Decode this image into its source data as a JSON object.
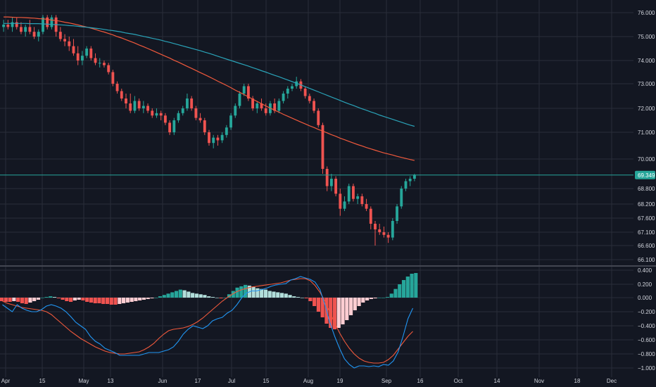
{
  "colors": {
    "background": "#131722",
    "grid": "#2a2e39",
    "axis_text": "#d1d4dc",
    "up": "#26a69a",
    "down": "#ef5350",
    "ma_fast": "#f0593c",
    "ma_slow": "#2aa3b8",
    "macd_line": "#2196f3",
    "signal_line": "#f0593c",
    "hist_up_strong": "#26a69a",
    "hist_up_weak": "#b2dfdb",
    "hist_down_strong": "#ef5350",
    "hist_down_weak": "#ffcdd2",
    "last_price_bg": "#26a69a"
  },
  "chart_data": [
    {
      "type": "candlestick",
      "panel": "price",
      "y_ticks": [
        "76.000",
        "75.000",
        "74.000",
        "73.000",
        "72.000",
        "71.000",
        "70.000",
        "68.800",
        "68.200",
        "67.600",
        "67.100",
        "66.600",
        "66.100"
      ],
      "y_tick_values": [
        76.0,
        75.0,
        74.0,
        73.0,
        72.0,
        71.0,
        70.0,
        68.8,
        68.2,
        67.6,
        67.1,
        66.6,
        66.1
      ],
      "last_price": "69.349",
      "last_price_value": 69.349,
      "x_ticks": [
        "Apr",
        "15",
        "May",
        "13",
        "Jun",
        "17",
        "Jul",
        "15",
        "Aug",
        "19",
        "Sep",
        "16",
        "Oct",
        "14",
        "Nov",
        "18",
        "Dec"
      ],
      "candles_ohlc": [
        [
          75.4,
          75.7,
          75.2,
          75.5
        ],
        [
          75.5,
          75.7,
          75.3,
          75.4
        ],
        [
          75.4,
          75.8,
          75.2,
          75.6
        ],
        [
          75.6,
          75.8,
          75.3,
          75.4
        ],
        [
          75.4,
          75.6,
          75.1,
          75.2
        ],
        [
          75.2,
          75.5,
          75.0,
          75.4
        ],
        [
          75.4,
          75.7,
          75.1,
          75.2
        ],
        [
          75.2,
          75.4,
          74.9,
          75.0
        ],
        [
          75.0,
          75.3,
          74.8,
          75.2
        ],
        [
          75.2,
          75.9,
          75.1,
          75.8
        ],
        [
          75.8,
          75.9,
          75.3,
          75.4
        ],
        [
          75.4,
          75.9,
          75.3,
          75.8
        ],
        [
          75.8,
          75.9,
          75.0,
          75.2
        ],
        [
          75.2,
          75.4,
          74.8,
          74.9
        ],
        [
          74.9,
          75.1,
          74.6,
          74.8
        ],
        [
          74.8,
          75.0,
          74.4,
          74.6
        ],
        [
          74.6,
          74.9,
          74.2,
          74.3
        ],
        [
          74.3,
          74.6,
          73.8,
          74.0
        ],
        [
          74.0,
          74.4,
          73.8,
          74.2
        ],
        [
          74.2,
          74.6,
          74.1,
          74.5
        ],
        [
          74.5,
          74.6,
          74.0,
          74.1
        ],
        [
          74.1,
          74.3,
          73.8,
          73.9
        ],
        [
          73.9,
          74.1,
          73.7,
          73.9
        ],
        [
          73.9,
          74.0,
          73.7,
          73.8
        ],
        [
          73.8,
          73.9,
          73.4,
          73.5
        ],
        [
          73.5,
          73.6,
          72.9,
          73.0
        ],
        [
          73.0,
          73.1,
          72.6,
          72.7
        ],
        [
          72.7,
          72.8,
          72.3,
          72.4
        ],
        [
          72.4,
          72.6,
          72.0,
          72.2
        ],
        [
          72.2,
          72.6,
          71.8,
          71.9
        ],
        [
          71.9,
          72.5,
          71.8,
          72.3
        ],
        [
          72.3,
          72.4,
          71.9,
          72.0
        ],
        [
          72.0,
          72.3,
          71.8,
          72.1
        ],
        [
          72.1,
          72.2,
          71.8,
          71.9
        ],
        [
          71.9,
          72.0,
          71.6,
          71.7
        ],
        [
          71.7,
          72.0,
          71.6,
          71.8
        ],
        [
          71.8,
          71.9,
          71.5,
          71.7
        ],
        [
          71.7,
          71.8,
          71.3,
          71.4
        ],
        [
          71.4,
          71.5,
          70.9,
          71.0
        ],
        [
          71.0,
          71.6,
          70.9,
          71.5
        ],
        [
          71.5,
          71.9,
          71.4,
          71.8
        ],
        [
          71.8,
          72.1,
          71.7,
          72.0
        ],
        [
          72.0,
          72.6,
          71.9,
          72.4
        ],
        [
          72.4,
          72.5,
          71.9,
          72.0
        ],
        [
          72.0,
          72.1,
          71.5,
          71.6
        ],
        [
          71.6,
          71.8,
          71.4,
          71.5
        ],
        [
          71.5,
          71.6,
          70.9,
          71.0
        ],
        [
          71.0,
          71.1,
          70.5,
          70.6
        ],
        [
          70.6,
          70.9,
          70.4,
          70.8
        ],
        [
          70.8,
          70.9,
          70.5,
          70.7
        ],
        [
          70.7,
          71.0,
          70.6,
          70.9
        ],
        [
          70.9,
          71.3,
          70.8,
          71.2
        ],
        [
          71.2,
          71.8,
          71.1,
          71.7
        ],
        [
          71.7,
          72.2,
          71.6,
          72.1
        ],
        [
          72.1,
          72.7,
          72.0,
          72.6
        ],
        [
          72.6,
          73.0,
          72.5,
          72.9
        ],
        [
          72.9,
          73.0,
          72.3,
          72.4
        ],
        [
          72.4,
          72.5,
          71.9,
          72.0
        ],
        [
          72.0,
          72.3,
          71.8,
          72.2
        ],
        [
          72.2,
          72.4,
          71.9,
          72.0
        ],
        [
          72.0,
          72.2,
          71.7,
          71.8
        ],
        [
          71.8,
          72.3,
          71.7,
          72.2
        ],
        [
          72.2,
          72.4,
          71.8,
          71.9
        ],
        [
          71.9,
          72.4,
          71.8,
          72.3
        ],
        [
          72.3,
          72.7,
          72.2,
          72.6
        ],
        [
          72.6,
          72.9,
          72.4,
          72.8
        ],
        [
          72.8,
          73.0,
          72.7,
          72.9
        ],
        [
          72.9,
          73.3,
          72.8,
          73.1
        ],
        [
          73.1,
          73.2,
          72.7,
          72.8
        ],
        [
          72.8,
          72.9,
          72.4,
          72.5
        ],
        [
          72.5,
          72.6,
          72.2,
          72.3
        ],
        [
          72.3,
          72.4,
          71.8,
          71.9
        ],
        [
          71.9,
          72.0,
          71.2,
          71.3
        ],
        [
          71.3,
          71.4,
          69.4,
          69.6
        ],
        [
          69.6,
          69.7,
          68.7,
          68.9
        ],
        [
          68.9,
          69.4,
          68.7,
          69.2
        ],
        [
          69.2,
          69.3,
          68.5,
          68.6
        ],
        [
          68.6,
          68.8,
          67.7,
          68.0
        ],
        [
          68.0,
          68.5,
          67.9,
          68.3
        ],
        [
          68.3,
          69.0,
          68.2,
          68.9
        ],
        [
          68.9,
          69.0,
          68.3,
          68.4
        ],
        [
          68.4,
          68.6,
          68.2,
          68.5
        ],
        [
          68.5,
          68.6,
          68.1,
          68.2
        ],
        [
          68.2,
          68.4,
          67.9,
          68.0
        ],
        [
          68.0,
          68.1,
          67.2,
          67.4
        ],
        [
          67.4,
          67.5,
          66.6,
          67.2
        ],
        [
          67.2,
          67.4,
          67.0,
          67.1
        ],
        [
          67.1,
          67.3,
          66.9,
          67.0
        ],
        [
          67.0,
          67.1,
          66.7,
          66.9
        ],
        [
          66.9,
          67.6,
          66.8,
          67.5
        ],
        [
          67.5,
          68.2,
          67.4,
          68.1
        ],
        [
          68.1,
          68.9,
          68.0,
          68.8
        ],
        [
          68.8,
          69.2,
          68.7,
          69.1
        ],
        [
          69.1,
          69.3,
          68.9,
          69.2
        ],
        [
          69.2,
          69.4,
          69.1,
          69.35
        ]
      ],
      "series": [
        {
          "style": "line",
          "color": "#f0593c",
          "values": [
            75.82,
            75.82,
            75.81,
            75.8,
            75.8,
            75.79,
            75.78,
            75.77,
            75.75,
            75.74,
            75.72,
            75.69,
            75.67,
            75.64,
            75.6,
            75.57,
            75.53,
            75.49,
            75.44,
            75.4,
            75.35,
            75.3,
            75.24,
            75.19,
            75.13,
            75.07,
            75.0,
            74.94,
            74.87,
            74.8,
            74.73,
            74.65,
            74.58,
            74.5,
            74.42,
            74.34,
            74.26,
            74.18,
            74.1,
            74.01,
            73.93,
            73.84,
            73.75,
            73.66,
            73.57,
            73.48,
            73.39,
            73.3,
            73.21,
            73.11,
            73.02,
            72.93,
            72.84,
            72.74,
            72.65,
            72.56,
            72.47,
            72.37,
            72.28,
            72.19,
            72.1,
            72.01,
            71.92,
            71.84,
            71.75,
            71.67,
            71.59,
            71.51,
            71.43,
            71.35,
            71.27,
            71.2,
            71.12,
            71.05,
            70.98,
            70.91,
            70.85,
            70.78,
            70.72,
            70.66,
            70.6,
            70.54,
            70.49,
            70.43,
            70.38,
            70.33,
            70.28,
            70.23,
            70.19,
            70.15,
            70.1,
            70.06,
            70.02,
            69.98,
            69.94
          ]
        },
        {
          "style": "line",
          "color": "#2aa3b8",
          "values": [
            75.55,
            75.55,
            75.55,
            75.55,
            75.55,
            75.55,
            75.54,
            75.54,
            75.54,
            75.53,
            75.52,
            75.51,
            75.5,
            75.49,
            75.48,
            75.46,
            75.45,
            75.43,
            75.41,
            75.39,
            75.37,
            75.35,
            75.33,
            75.3,
            75.27,
            75.25,
            75.22,
            75.19,
            75.15,
            75.12,
            75.09,
            75.05,
            75.01,
            74.97,
            74.93,
            74.89,
            74.85,
            74.8,
            74.76,
            74.71,
            74.66,
            74.61,
            74.56,
            74.51,
            74.46,
            74.41,
            74.35,
            74.3,
            74.24,
            74.18,
            74.12,
            74.06,
            74.0,
            73.94,
            73.88,
            73.82,
            73.76,
            73.69,
            73.63,
            73.56,
            73.5,
            73.43,
            73.36,
            73.3,
            73.23,
            73.16,
            73.09,
            73.02,
            72.95,
            72.88,
            72.81,
            72.74,
            72.67,
            72.6,
            72.53,
            72.46,
            72.39,
            72.32,
            72.25,
            72.18,
            72.12,
            72.05,
            71.98,
            71.92,
            71.85,
            71.79,
            71.72,
            71.66,
            71.6,
            71.54,
            71.48,
            71.42,
            71.36,
            71.3,
            71.25
          ]
        }
      ]
    },
    {
      "type": "bar",
      "panel": "macd",
      "y_ticks": [
        "0.400",
        "0.200",
        "0.000",
        "−0.200",
        "−0.400",
        "−0.600",
        "−0.800",
        "−1.000"
      ],
      "y_tick_values": [
        0.4,
        0.2,
        0.0,
        -0.2,
        -0.4,
        -0.6,
        -0.8,
        -1.0
      ],
      "histogram": [
        -0.05,
        -0.06,
        -0.06,
        -0.05,
        -0.06,
        -0.08,
        -0.09,
        -0.07,
        -0.05,
        -0.03,
        0.0,
        0.01,
        0.02,
        0.01,
        -0.01,
        -0.03,
        -0.05,
        -0.06,
        -0.04,
        -0.03,
        -0.04,
        -0.06,
        -0.07,
        -0.08,
        -0.08,
        -0.09,
        -0.09,
        -0.1,
        -0.1,
        -0.09,
        -0.08,
        -0.07,
        -0.06,
        -0.05,
        -0.04,
        -0.03,
        -0.02,
        -0.01,
        0.0,
        0.02,
        0.04,
        0.06,
        0.08,
        0.1,
        0.12,
        0.11,
        0.09,
        0.07,
        0.06,
        0.05,
        0.04,
        0.02,
        0.01,
        0.0,
        -0.01,
        0.0,
        0.05,
        0.1,
        0.15,
        0.17,
        0.19,
        0.18,
        0.16,
        0.14,
        0.13,
        0.12,
        0.1,
        0.09,
        0.08,
        0.07,
        0.06,
        0.04,
        0.02,
        0.01,
        0.0,
        -0.01,
        -0.05,
        -0.12,
        -0.2,
        -0.28,
        -0.37,
        -0.43,
        -0.45,
        -0.43,
        -0.38,
        -0.32,
        -0.25,
        -0.18,
        -0.12,
        -0.07,
        -0.04,
        -0.02,
        -0.01,
        0.0,
        0.0,
        0.01,
        0.06,
        0.13,
        0.2,
        0.26,
        0.31,
        0.35,
        0.36
      ],
      "macd_values": [
        -0.1,
        -0.15,
        -0.2,
        -0.1,
        -0.15,
        -0.18,
        -0.2,
        -0.2,
        -0.17,
        -0.12,
        -0.1,
        -0.12,
        -0.15,
        -0.2,
        -0.27,
        -0.35,
        -0.4,
        -0.45,
        -0.55,
        -0.62,
        -0.66,
        -0.72,
        -0.75,
        -0.78,
        -0.82,
        -0.82,
        -0.82,
        -0.82,
        -0.82,
        -0.8,
        -0.78,
        -0.78,
        -0.78,
        -0.76,
        -0.74,
        -0.7,
        -0.62,
        -0.52,
        -0.45,
        -0.4,
        -0.42,
        -0.44,
        -0.4,
        -0.33,
        -0.3,
        -0.28,
        -0.22,
        -0.18,
        -0.1,
        0.0,
        0.07,
        0.1,
        0.1,
        0.12,
        0.14,
        0.17,
        0.19,
        0.2,
        0.21,
        0.26,
        0.28,
        0.31,
        0.29,
        0.27,
        0.23,
        0.12,
        -0.1,
        -0.35,
        -0.55,
        -0.72,
        -0.87,
        -0.95,
        -1.0,
        -0.97,
        -0.97,
        -0.98,
        -0.97,
        -0.98,
        -0.95,
        -0.96,
        -0.9,
        -0.77,
        -0.55,
        -0.3,
        -0.15
      ],
      "signal_values": [
        -0.05,
        -0.08,
        -0.1,
        -0.12,
        -0.14,
        -0.15,
        -0.16,
        -0.17,
        -0.18,
        -0.2,
        -0.24,
        -0.3,
        -0.36,
        -0.42,
        -0.48,
        -0.53,
        -0.58,
        -0.62,
        -0.66,
        -0.7,
        -0.73,
        -0.76,
        -0.78,
        -0.79,
        -0.8,
        -0.8,
        -0.79,
        -0.78,
        -0.77,
        -0.74,
        -0.7,
        -0.65,
        -0.58,
        -0.52,
        -0.47,
        -0.45,
        -0.44,
        -0.43,
        -0.41,
        -0.38,
        -0.34,
        -0.29,
        -0.23,
        -0.17,
        -0.11,
        -0.05,
        0.0,
        0.05,
        0.09,
        0.12,
        0.14,
        0.16,
        0.17,
        0.18,
        0.19,
        0.2,
        0.21,
        0.22,
        0.24,
        0.26,
        0.27,
        0.28,
        0.28,
        0.25,
        0.18,
        0.08,
        -0.05,
        -0.2,
        -0.36,
        -0.5,
        -0.62,
        -0.72,
        -0.8,
        -0.86,
        -0.9,
        -0.92,
        -0.93,
        -0.93,
        -0.92,
        -0.88,
        -0.82,
        -0.73,
        -0.64,
        -0.55,
        -0.48
      ]
    }
  ]
}
